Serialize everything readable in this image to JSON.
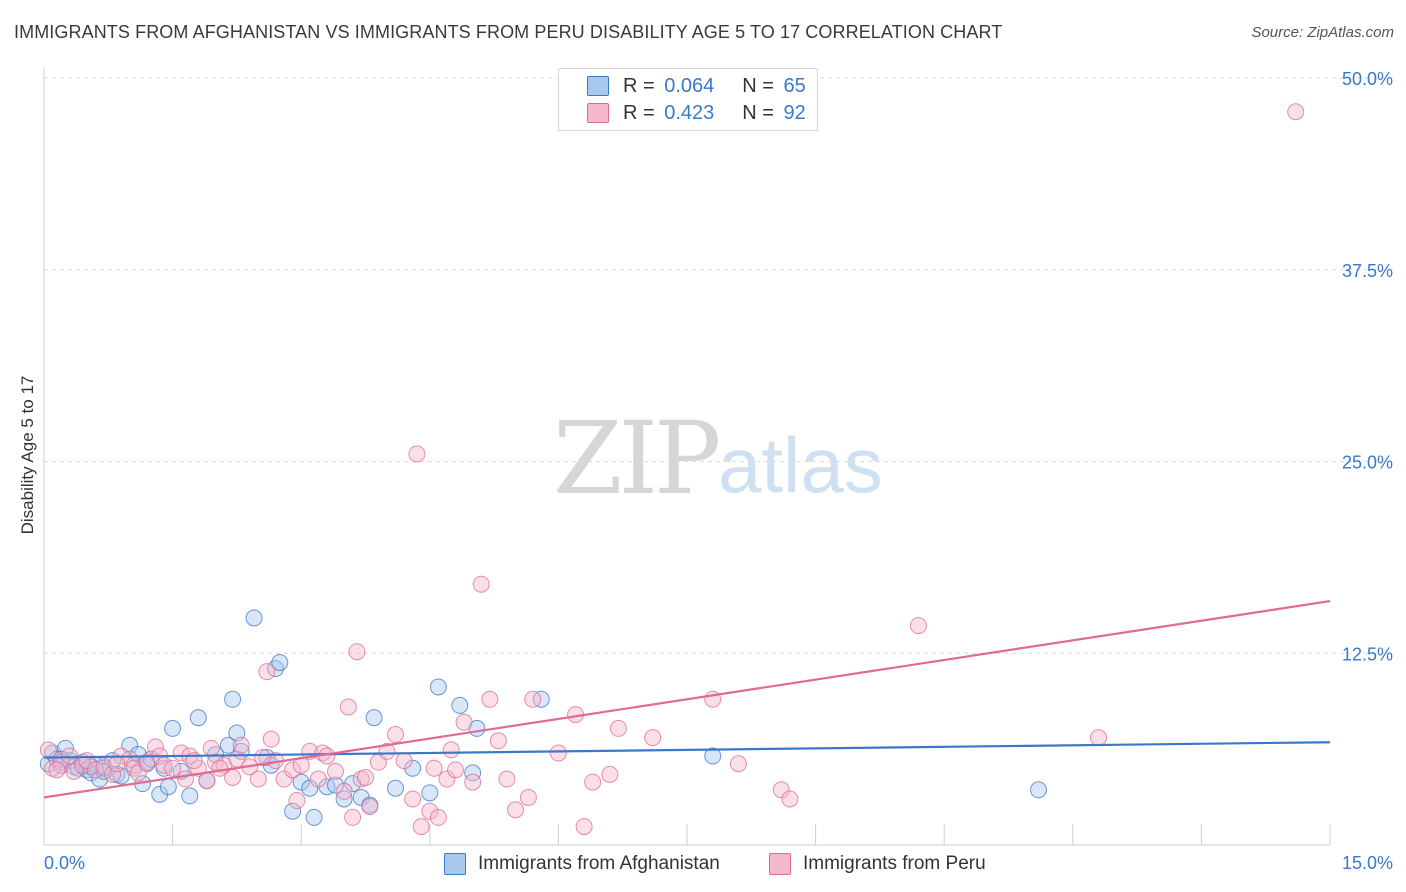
{
  "header": {
    "title": "IMMIGRANTS FROM AFGHANISTAN VS IMMIGRANTS FROM PERU DISABILITY AGE 5 TO 17 CORRELATION CHART",
    "source": "Source: ZipAtlas.com"
  },
  "watermark": {
    "zip": "ZIP",
    "atlas": "atlas"
  },
  "legend_top": {
    "rows": [
      {
        "r_label": "R =",
        "r_value": "0.064",
        "n_label": "N =",
        "n_value": "65",
        "color": "#a9c8ee"
      },
      {
        "r_label": "R =",
        "r_value": "0.423",
        "n_label": "N =",
        "n_value": "92",
        "color": "#f5b8cc"
      }
    ]
  },
  "legend_bottom": {
    "items": [
      {
        "label": "Immigrants from Afghanistan",
        "color": "#a9c8ee"
      },
      {
        "label": "Immigrants from Peru",
        "color": "#f5b8cc"
      }
    ]
  },
  "chart_data": {
    "type": "scatter",
    "title": "IMMIGRANTS FROM AFGHANISTAN VS IMMIGRANTS FROM PERU DISABILITY AGE 5 TO 17 CORRELATION CHART",
    "xlabel": "",
    "ylabel": "Disability Age 5 to 17",
    "xlim": [
      0,
      15
    ],
    "ylim": [
      0,
      50
    ],
    "x_tick_labels": [
      "0.0%",
      "15.0%"
    ],
    "y_tick_labels": [
      "12.5%",
      "25.0%",
      "37.5%",
      "50.0%"
    ],
    "y_ticks": [
      12.5,
      25.0,
      37.5,
      50.0
    ],
    "x_ticks": [
      0,
      1.5,
      3,
      4.5,
      6,
      7.5,
      9,
      10.5,
      12,
      13.5,
      15
    ],
    "grid": true,
    "colors": {
      "afghanistan": "#3a78c9",
      "peru": "#e06a93",
      "afghanistan_fill": "#a9c8ee",
      "peru_fill": "#f5b8cc",
      "grid": "#dcdcdc",
      "tick_label": "#3a78c9"
    },
    "series": [
      {
        "name": "Immigrants from Afghanistan",
        "trend": [
          [
            0,
            5.7
          ],
          [
            15,
            6.7
          ]
        ],
        "points": [
          [
            0.05,
            5.3
          ],
          [
            0.1,
            6.0
          ],
          [
            0.15,
            5.6
          ],
          [
            0.2,
            5.2
          ],
          [
            0.25,
            6.3
          ],
          [
            0.3,
            5.5
          ],
          [
            0.35,
            5.1
          ],
          [
            0.4,
            5.0
          ],
          [
            0.45,
            5.4
          ],
          [
            0.5,
            4.9
          ],
          [
            0.55,
            4.7
          ],
          [
            0.6,
            5.2
          ],
          [
            0.65,
            4.3
          ],
          [
            0.7,
            5.0
          ],
          [
            0.8,
            5.5
          ],
          [
            0.85,
            4.6
          ],
          [
            0.9,
            4.5
          ],
          [
            1.0,
            6.5
          ],
          [
            1.05,
            5.2
          ],
          [
            1.1,
            5.9
          ],
          [
            1.15,
            4.0
          ],
          [
            1.2,
            5.3
          ],
          [
            1.35,
            3.3
          ],
          [
            1.4,
            5.0
          ],
          [
            1.45,
            3.8
          ],
          [
            1.5,
            7.6
          ],
          [
            1.6,
            4.8
          ],
          [
            1.7,
            3.2
          ],
          [
            1.8,
            8.3
          ],
          [
            1.9,
            4.2
          ],
          [
            2.0,
            5.9
          ],
          [
            2.15,
            6.5
          ],
          [
            2.2,
            9.5
          ],
          [
            2.25,
            7.3
          ],
          [
            2.3,
            6.1
          ],
          [
            2.45,
            14.8
          ],
          [
            2.6,
            5.7
          ],
          [
            2.65,
            5.2
          ],
          [
            2.7,
            11.5
          ],
          [
            2.75,
            11.9
          ],
          [
            2.9,
            2.2
          ],
          [
            3.0,
            4.1
          ],
          [
            3.1,
            3.7
          ],
          [
            3.15,
            1.8
          ],
          [
            3.3,
            3.8
          ],
          [
            3.5,
            3.0
          ],
          [
            3.6,
            4.0
          ],
          [
            3.7,
            3.1
          ],
          [
            3.8,
            2.6
          ],
          [
            3.85,
            8.3
          ],
          [
            4.1,
            3.7
          ],
          [
            4.3,
            5.0
          ],
          [
            4.5,
            3.4
          ],
          [
            4.6,
            10.3
          ],
          [
            4.85,
            9.1
          ],
          [
            5.0,
            4.7
          ],
          [
            5.05,
            7.6
          ],
          [
            5.8,
            9.5
          ],
          [
            7.8,
            5.8
          ],
          [
            11.6,
            3.6
          ],
          [
            0.2,
            5.6
          ],
          [
            0.7,
            4.8
          ],
          [
            1.25,
            5.6
          ],
          [
            3.4,
            3.9
          ],
          [
            0.55,
            5.1
          ]
        ]
      },
      {
        "name": "Immigrants from Peru",
        "trend": [
          [
            0,
            3.1
          ],
          [
            15,
            15.9
          ]
        ],
        "points": [
          [
            0.05,
            6.2
          ],
          [
            0.1,
            5.0
          ],
          [
            0.2,
            5.4
          ],
          [
            0.3,
            5.8
          ],
          [
            0.35,
            4.8
          ],
          [
            0.45,
            5.2
          ],
          [
            0.5,
            5.5
          ],
          [
            0.6,
            4.9
          ],
          [
            0.7,
            5.1
          ],
          [
            0.8,
            4.6
          ],
          [
            0.9,
            5.8
          ],
          [
            1.0,
            5.6
          ],
          [
            1.05,
            5.0
          ],
          [
            1.1,
            4.7
          ],
          [
            1.2,
            5.4
          ],
          [
            1.3,
            6.4
          ],
          [
            1.35,
            5.8
          ],
          [
            1.4,
            5.2
          ],
          [
            1.5,
            5.0
          ],
          [
            1.6,
            6.0
          ],
          [
            1.65,
            4.3
          ],
          [
            1.7,
            5.8
          ],
          [
            1.8,
            5.0
          ],
          [
            1.9,
            4.2
          ],
          [
            1.95,
            6.3
          ],
          [
            2.0,
            5.4
          ],
          [
            2.1,
            5.2
          ],
          [
            2.2,
            4.4
          ],
          [
            2.25,
            5.6
          ],
          [
            2.3,
            6.5
          ],
          [
            2.4,
            5.1
          ],
          [
            2.5,
            4.3
          ],
          [
            2.6,
            11.3
          ],
          [
            2.65,
            6.9
          ],
          [
            2.7,
            5.5
          ],
          [
            2.8,
            4.3
          ],
          [
            2.9,
            4.9
          ],
          [
            2.95,
            2.9
          ],
          [
            3.0,
            5.2
          ],
          [
            3.1,
            6.1
          ],
          [
            3.2,
            4.3
          ],
          [
            3.25,
            6.0
          ],
          [
            3.3,
            5.8
          ],
          [
            3.4,
            4.8
          ],
          [
            3.5,
            3.5
          ],
          [
            3.55,
            9.0
          ],
          [
            3.6,
            1.8
          ],
          [
            3.65,
            12.6
          ],
          [
            3.7,
            4.3
          ],
          [
            3.8,
            2.5
          ],
          [
            3.9,
            5.4
          ],
          [
            4.0,
            6.1
          ],
          [
            4.1,
            7.2
          ],
          [
            4.2,
            5.5
          ],
          [
            4.3,
            3.0
          ],
          [
            4.35,
            25.5
          ],
          [
            4.4,
            1.2
          ],
          [
            4.5,
            2.2
          ],
          [
            4.6,
            1.8
          ],
          [
            4.7,
            4.3
          ],
          [
            4.75,
            6.2
          ],
          [
            4.8,
            4.9
          ],
          [
            4.9,
            8.0
          ],
          [
            5.0,
            4.1
          ],
          [
            5.1,
            17.0
          ],
          [
            5.2,
            9.5
          ],
          [
            5.3,
            6.8
          ],
          [
            5.4,
            4.3
          ],
          [
            5.5,
            2.3
          ],
          [
            5.65,
            3.1
          ],
          [
            5.7,
            9.5
          ],
          [
            6.0,
            6.0
          ],
          [
            6.2,
            8.5
          ],
          [
            6.3,
            1.2
          ],
          [
            6.4,
            4.1
          ],
          [
            6.6,
            4.6
          ],
          [
            6.7,
            7.6
          ],
          [
            7.1,
            7.0
          ],
          [
            7.8,
            9.5
          ],
          [
            8.1,
            5.3
          ],
          [
            8.6,
            3.6
          ],
          [
            8.7,
            3.0
          ],
          [
            10.2,
            14.3
          ],
          [
            12.3,
            7.0
          ],
          [
            14.6,
            47.8
          ],
          [
            0.15,
            4.9
          ],
          [
            1.75,
            5.5
          ],
          [
            2.55,
            5.7
          ],
          [
            3.75,
            4.4
          ],
          [
            4.55,
            5.0
          ],
          [
            0.85,
            5.3
          ],
          [
            2.05,
            5.0
          ]
        ]
      }
    ]
  }
}
